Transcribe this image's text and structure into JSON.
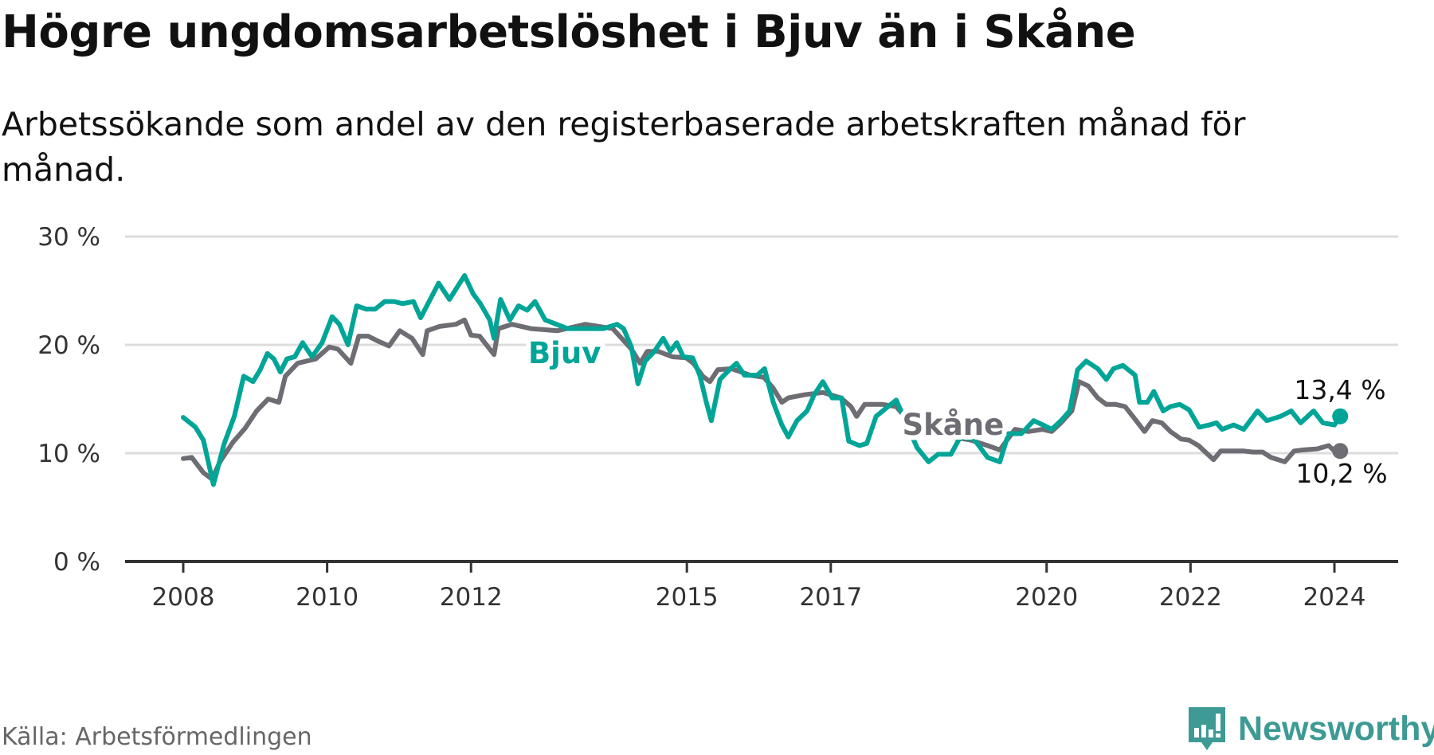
{
  "title": "Högre ungdomsarbetslöshet i Bjuv än i Skåne",
  "subtitle": "Arbetssökande som andel av den registerbaserade arbetskraften månad för månad.",
  "source": "Källa: Arbetsförmedlingen",
  "brand": "Newsworthy",
  "colors": {
    "bjuv": "#00a597",
    "skane": "#6e6d73",
    "grid": "#dddddd",
    "axis": "#333333",
    "brand": "#3d9a94"
  },
  "chart_data": {
    "type": "line",
    "title": "Högre ungdomsarbetslöshet i Bjuv än i Skåne",
    "xlabel": "",
    "ylabel": "",
    "xlim": [
      2007.2,
      2025.2
    ],
    "ylim": [
      0,
      30
    ],
    "yticks": [
      0,
      10,
      20,
      30
    ],
    "ytick_labels": [
      "0 %",
      "10 %",
      "20 %",
      "30 %"
    ],
    "xticks": [
      2008,
      2010,
      2012,
      2015,
      2017,
      2020,
      2022,
      2024
    ],
    "xtick_labels": [
      "2008",
      "2010",
      "2012",
      "2015",
      "2017",
      "2020",
      "2022",
      "2024"
    ],
    "grid": true,
    "series": [
      {
        "name": "Skåne",
        "label": "Skåne",
        "end_label": "10,2 %",
        "color_key": "skane",
        "points": [
          [
            2008.0,
            9.5
          ],
          [
            2008.12,
            9.6
          ],
          [
            2008.28,
            8.2
          ],
          [
            2008.4,
            7.6
          ],
          [
            2008.51,
            9.2
          ],
          [
            2008.69,
            11.0
          ],
          [
            2008.86,
            12.3
          ],
          [
            2009.02,
            13.9
          ],
          [
            2009.18,
            15.0
          ],
          [
            2009.33,
            14.7
          ],
          [
            2009.42,
            17.1
          ],
          [
            2009.59,
            18.3
          ],
          [
            2009.84,
            18.7
          ],
          [
            2010.03,
            19.8
          ],
          [
            2010.15,
            19.6
          ],
          [
            2010.33,
            18.3
          ],
          [
            2010.44,
            20.8
          ],
          [
            2010.57,
            20.8
          ],
          [
            2010.69,
            20.4
          ],
          [
            2010.86,
            19.9
          ],
          [
            2011.01,
            21.3
          ],
          [
            2011.18,
            20.6
          ],
          [
            2011.33,
            19.1
          ],
          [
            2011.39,
            21.3
          ],
          [
            2011.56,
            21.7
          ],
          [
            2011.79,
            21.9
          ],
          [
            2011.91,
            22.3
          ],
          [
            2012.0,
            20.9
          ],
          [
            2012.12,
            20.8
          ],
          [
            2012.32,
            19.1
          ],
          [
            2012.38,
            21.5
          ],
          [
            2012.57,
            21.9
          ],
          [
            2012.83,
            21.5
          ],
          [
            2013.2,
            21.3
          ],
          [
            2013.59,
            21.9
          ],
          [
            2013.97,
            21.5
          ],
          [
            2014.23,
            19.6
          ],
          [
            2014.35,
            18.3
          ],
          [
            2014.45,
            19.4
          ],
          [
            2014.6,
            19.4
          ],
          [
            2014.8,
            18.9
          ],
          [
            2014.99,
            18.8
          ],
          [
            2015.09,
            18.3
          ],
          [
            2015.22,
            17.1
          ],
          [
            2015.32,
            16.6
          ],
          [
            2015.43,
            17.7
          ],
          [
            2015.62,
            17.8
          ],
          [
            2015.88,
            17.2
          ],
          [
            2016.07,
            17.0
          ],
          [
            2016.2,
            16.0
          ],
          [
            2016.32,
            14.7
          ],
          [
            2016.41,
            15.1
          ],
          [
            2016.64,
            15.4
          ],
          [
            2016.89,
            15.6
          ],
          [
            2017.14,
            15.1
          ],
          [
            2017.28,
            14.3
          ],
          [
            2017.36,
            13.4
          ],
          [
            2017.47,
            14.5
          ],
          [
            2017.72,
            14.5
          ],
          [
            2017.91,
            14.3
          ],
          [
            2018.23,
            11.8
          ],
          [
            2018.6,
            11.6
          ],
          [
            2018.95,
            11.2
          ],
          [
            2019.18,
            10.7
          ],
          [
            2019.35,
            10.3
          ],
          [
            2019.56,
            12.2
          ],
          [
            2019.75,
            12.0
          ],
          [
            2019.94,
            12.2
          ],
          [
            2020.07,
            12.0
          ],
          [
            2020.2,
            12.8
          ],
          [
            2020.35,
            13.9
          ],
          [
            2020.45,
            16.6
          ],
          [
            2020.58,
            16.2
          ],
          [
            2020.71,
            15.1
          ],
          [
            2020.83,
            14.5
          ],
          [
            2020.96,
            14.5
          ],
          [
            2021.09,
            14.3
          ],
          [
            2021.21,
            13.3
          ],
          [
            2021.36,
            12.0
          ],
          [
            2021.47,
            13.0
          ],
          [
            2021.6,
            12.8
          ],
          [
            2021.72,
            12.0
          ],
          [
            2021.87,
            11.3
          ],
          [
            2021.98,
            11.2
          ],
          [
            2022.11,
            10.7
          ],
          [
            2022.32,
            9.4
          ],
          [
            2022.42,
            10.2
          ],
          [
            2022.74,
            10.2
          ],
          [
            2022.87,
            10.1
          ],
          [
            2023.0,
            10.1
          ],
          [
            2023.12,
            9.6
          ],
          [
            2023.31,
            9.2
          ],
          [
            2023.44,
            10.2
          ],
          [
            2023.57,
            10.3
          ],
          [
            2023.76,
            10.4
          ],
          [
            2023.92,
            10.7
          ],
          [
            2024.0,
            10.2
          ],
          [
            2024.08,
            10.2
          ]
        ]
      },
      {
        "name": "Bjuv",
        "label": "Bjuv",
        "end_label": "13,4 %",
        "color_key": "bjuv",
        "points": [
          [
            2008.0,
            13.3
          ],
          [
            2008.17,
            12.4
          ],
          [
            2008.28,
            11.2
          ],
          [
            2008.42,
            7.1
          ],
          [
            2008.57,
            10.9
          ],
          [
            2008.71,
            13.4
          ],
          [
            2008.84,
            17.1
          ],
          [
            2008.97,
            16.6
          ],
          [
            2009.07,
            17.7
          ],
          [
            2009.17,
            19.2
          ],
          [
            2009.26,
            18.7
          ],
          [
            2009.35,
            17.5
          ],
          [
            2009.44,
            18.7
          ],
          [
            2009.55,
            18.9
          ],
          [
            2009.66,
            20.2
          ],
          [
            2009.79,
            18.9
          ],
          [
            2009.93,
            20.2
          ],
          [
            2010.07,
            22.6
          ],
          [
            2010.17,
            21.9
          ],
          [
            2010.29,
            20.0
          ],
          [
            2010.41,
            23.6
          ],
          [
            2010.54,
            23.3
          ],
          [
            2010.67,
            23.3
          ],
          [
            2010.8,
            24.0
          ],
          [
            2010.93,
            24.0
          ],
          [
            2011.05,
            23.8
          ],
          [
            2011.2,
            24.0
          ],
          [
            2011.3,
            22.5
          ],
          [
            2011.55,
            25.7
          ],
          [
            2011.7,
            24.2
          ],
          [
            2011.91,
            26.4
          ],
          [
            2012.03,
            24.7
          ],
          [
            2012.13,
            23.8
          ],
          [
            2012.26,
            22.3
          ],
          [
            2012.32,
            20.6
          ],
          [
            2012.41,
            24.2
          ],
          [
            2012.54,
            22.3
          ],
          [
            2012.66,
            23.6
          ],
          [
            2012.78,
            23.2
          ],
          [
            2012.89,
            24.0
          ],
          [
            2013.03,
            22.3
          ],
          [
            2013.34,
            21.5
          ],
          [
            2013.84,
            21.5
          ],
          [
            2014.03,
            21.9
          ],
          [
            2014.12,
            21.5
          ],
          [
            2014.23,
            19.8
          ],
          [
            2014.32,
            16.4
          ],
          [
            2014.42,
            18.5
          ],
          [
            2014.55,
            19.4
          ],
          [
            2014.67,
            20.6
          ],
          [
            2014.77,
            19.4
          ],
          [
            2014.86,
            20.2
          ],
          [
            2014.95,
            18.9
          ],
          [
            2015.08,
            18.8
          ],
          [
            2015.18,
            17.2
          ],
          [
            2015.27,
            14.7
          ],
          [
            2015.34,
            13.0
          ],
          [
            2015.46,
            16.8
          ],
          [
            2015.59,
            17.7
          ],
          [
            2015.69,
            18.3
          ],
          [
            2015.8,
            17.2
          ],
          [
            2015.98,
            17.2
          ],
          [
            2016.08,
            17.8
          ],
          [
            2016.2,
            14.7
          ],
          [
            2016.32,
            12.6
          ],
          [
            2016.41,
            11.5
          ],
          [
            2016.53,
            13.0
          ],
          [
            2016.67,
            13.9
          ],
          [
            2016.77,
            15.4
          ],
          [
            2016.89,
            16.6
          ],
          [
            2017.02,
            15.1
          ],
          [
            2017.15,
            15.1
          ],
          [
            2017.25,
            11.1
          ],
          [
            2017.4,
            10.7
          ],
          [
            2017.5,
            10.9
          ],
          [
            2017.63,
            13.4
          ],
          [
            2017.76,
            14.1
          ],
          [
            2017.91,
            14.9
          ],
          [
            2018.2,
            10.5
          ],
          [
            2018.36,
            9.2
          ],
          [
            2018.49,
            9.9
          ],
          [
            2018.67,
            9.9
          ],
          [
            2018.8,
            11.5
          ],
          [
            2018.99,
            11.3
          ],
          [
            2019.18,
            9.6
          ],
          [
            2019.35,
            9.2
          ],
          [
            2019.47,
            11.8
          ],
          [
            2019.65,
            11.8
          ],
          [
            2019.82,
            13.0
          ],
          [
            2019.95,
            12.6
          ],
          [
            2020.07,
            12.2
          ],
          [
            2020.2,
            13.0
          ],
          [
            2020.32,
            13.9
          ],
          [
            2020.43,
            17.7
          ],
          [
            2020.55,
            18.5
          ],
          [
            2020.71,
            17.8
          ],
          [
            2020.83,
            16.8
          ],
          [
            2020.93,
            17.8
          ],
          [
            2021.06,
            18.1
          ],
          [
            2021.23,
            17.2
          ],
          [
            2021.29,
            14.7
          ],
          [
            2021.4,
            14.7
          ],
          [
            2021.49,
            15.7
          ],
          [
            2021.62,
            13.9
          ],
          [
            2021.72,
            14.3
          ],
          [
            2021.85,
            14.5
          ],
          [
            2021.98,
            14.0
          ],
          [
            2022.12,
            12.4
          ],
          [
            2022.26,
            12.6
          ],
          [
            2022.36,
            12.8
          ],
          [
            2022.44,
            12.2
          ],
          [
            2022.6,
            12.6
          ],
          [
            2022.74,
            12.2
          ],
          [
            2022.93,
            13.9
          ],
          [
            2023.06,
            13.0
          ],
          [
            2023.25,
            13.4
          ],
          [
            2023.4,
            13.9
          ],
          [
            2023.53,
            12.8
          ],
          [
            2023.71,
            13.9
          ],
          [
            2023.84,
            12.8
          ],
          [
            2024.0,
            12.6
          ],
          [
            2024.08,
            13.4
          ]
        ]
      }
    ]
  }
}
